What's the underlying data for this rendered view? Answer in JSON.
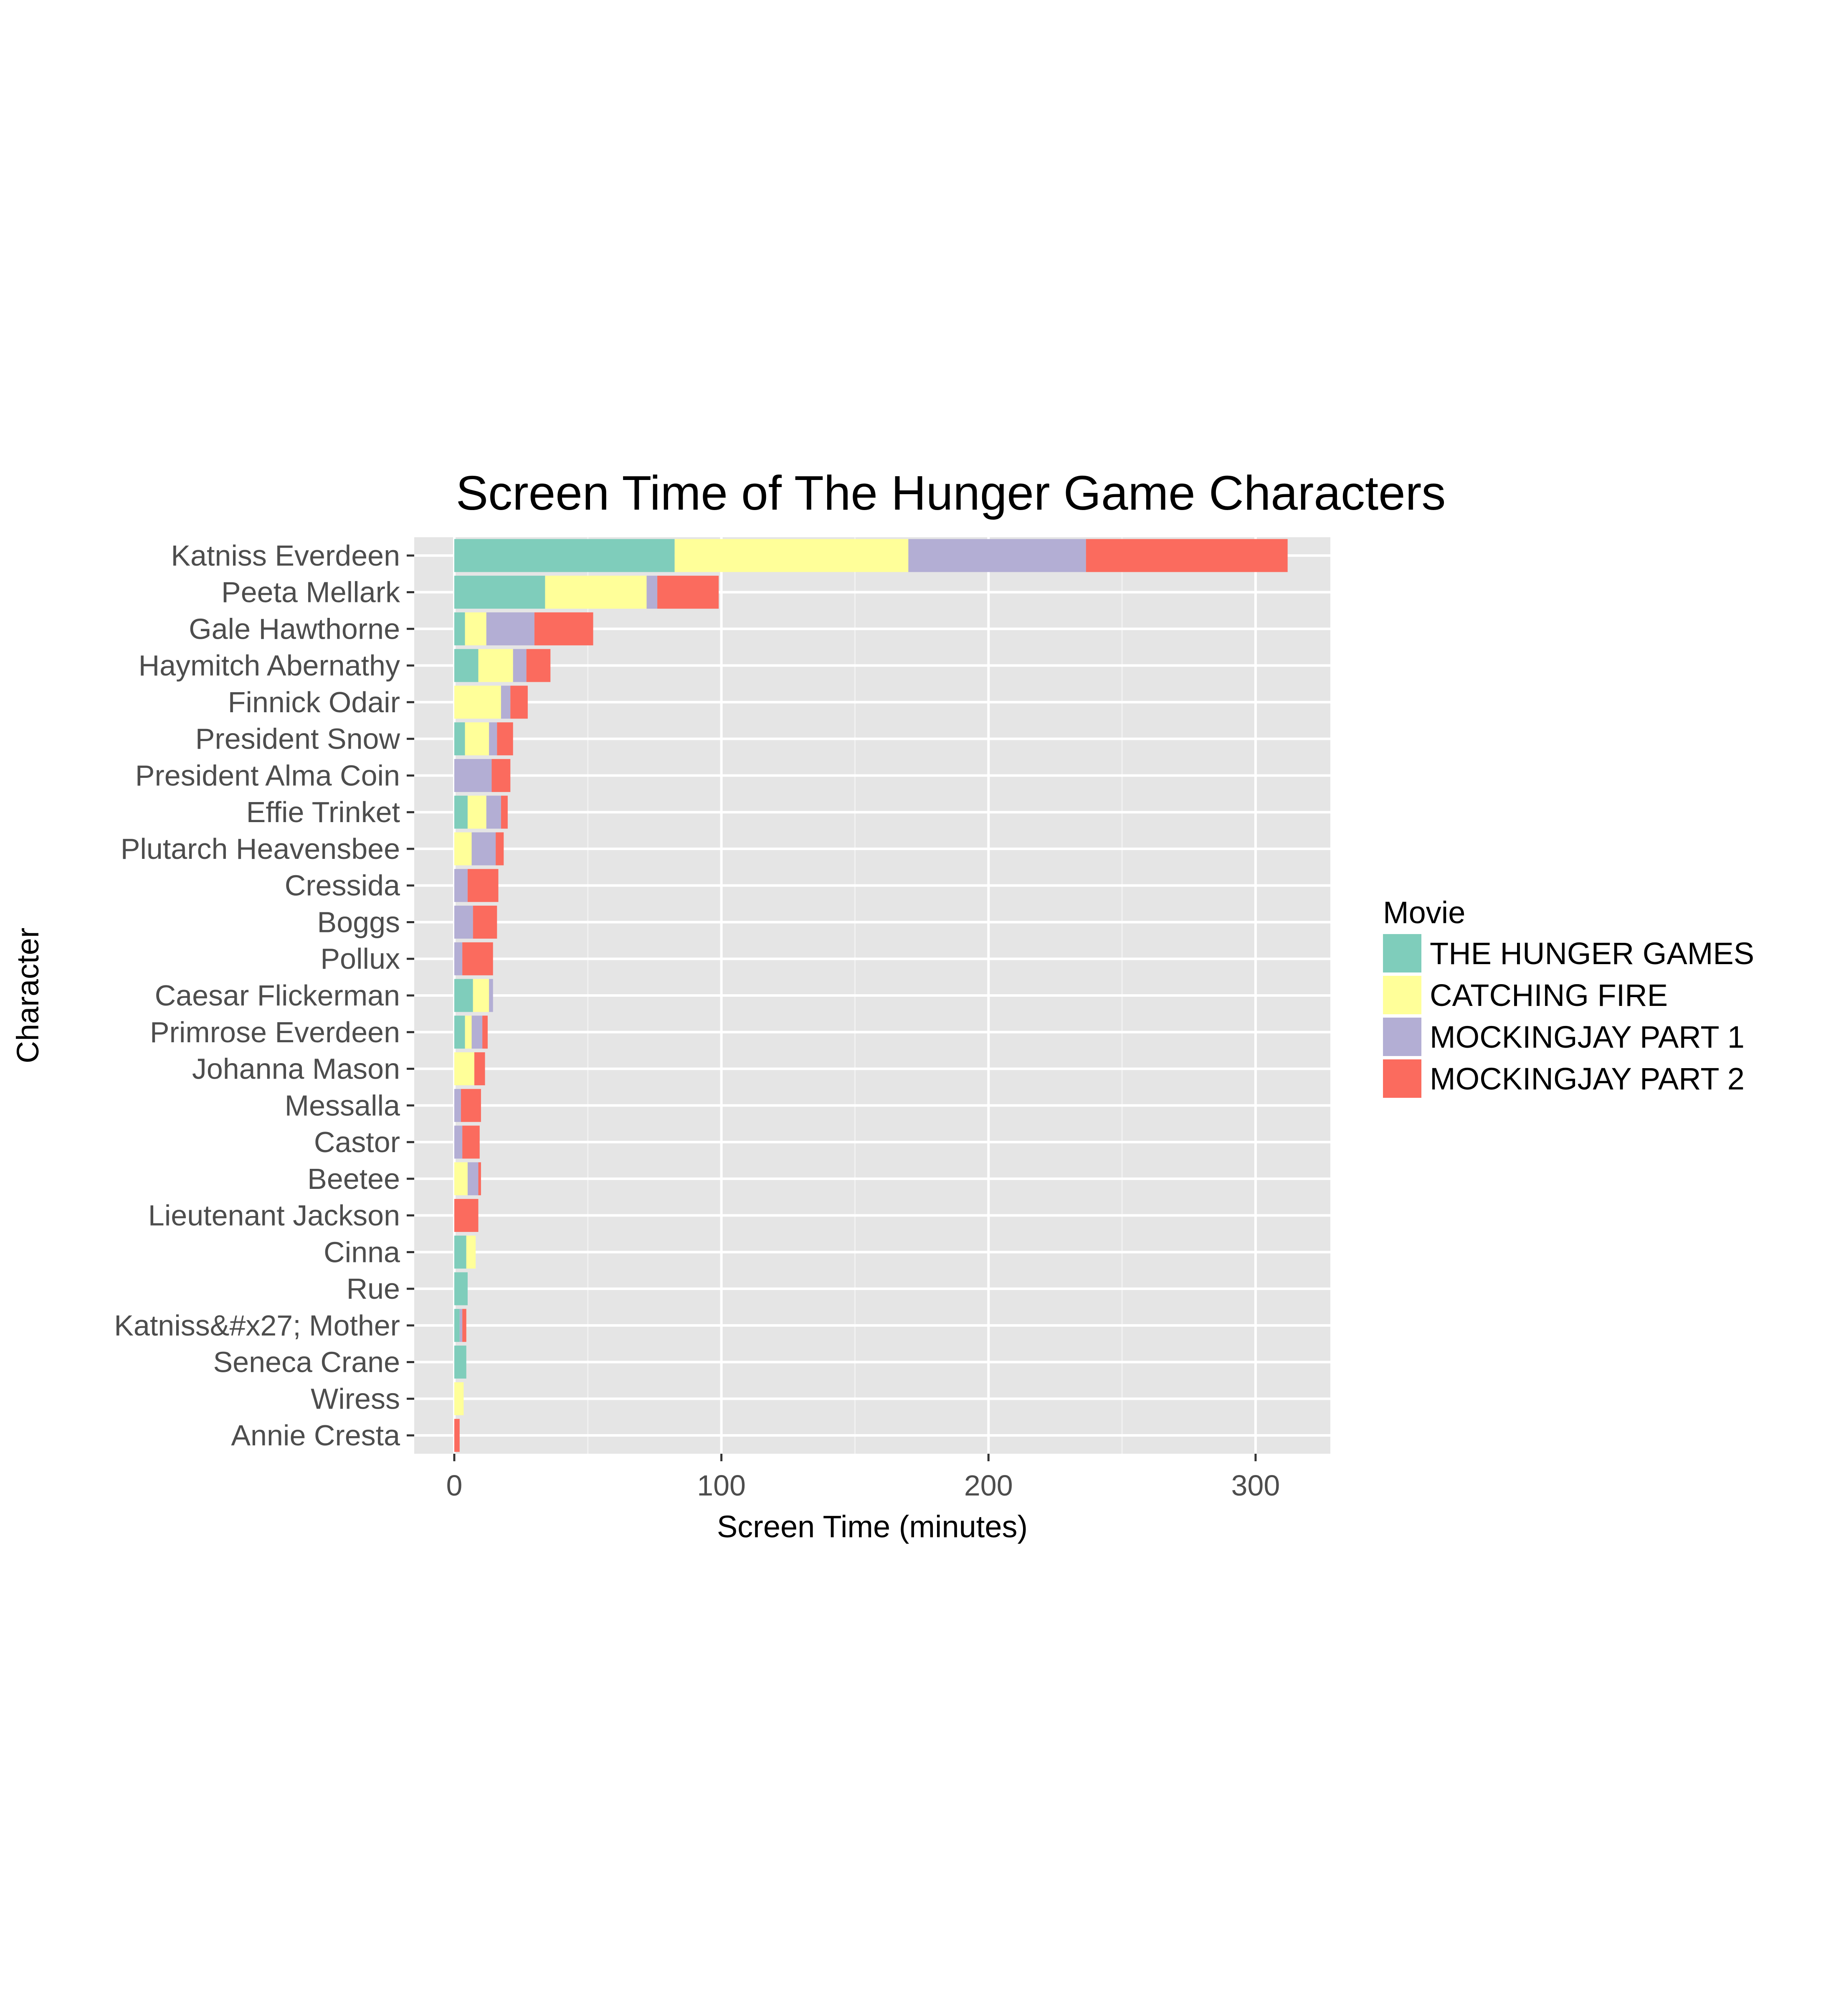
{
  "chart_data": {
    "type": "bar",
    "orientation": "horizontal",
    "stacked": true,
    "title": "Screen Time of The Hunger Game Characters",
    "xlabel": "Screen Time (minutes)",
    "ylabel": "Character",
    "xlim": [
      -15,
      328
    ],
    "xticks": [
      0,
      100,
      200,
      300
    ],
    "grid": true,
    "legend_title": "Movie",
    "legend_position": "right",
    "categories": [
      "Katniss Everdeen",
      "Peeta Mellark",
      "Gale Hawthorne",
      "Haymitch Abernathy",
      "Finnick Odair",
      "President Snow",
      "President Alma Coin",
      "Effie Trinket",
      "Plutarch Heavensbee",
      "Cressida",
      "Boggs",
      "Pollux",
      "Caesar Flickerman",
      "Primrose Everdeen",
      "Johanna Mason",
      "Messalla",
      "Castor",
      "Beetee",
      "Lieutenant Jackson",
      "Cinna",
      "Rue",
      "Katniss&#x27; Mother",
      "Seneca Crane",
      "Wiress",
      "Annie Cresta"
    ],
    "series": [
      {
        "name": "THE HUNGER GAMES",
        "color": "#7fcdbb",
        "values": [
          82.5,
          34,
          4,
          9,
          0,
          4,
          0,
          5,
          0,
          0,
          0,
          0,
          7,
          4,
          0,
          0,
          0,
          0,
          0,
          4.5,
          5,
          2,
          4.5,
          0,
          0
        ]
      },
      {
        "name": "CATCHING FIRE",
        "color": "#ffff99",
        "values": [
          87.5,
          38,
          8,
          13,
          17.5,
          9,
          0,
          7,
          6.5,
          0,
          0,
          0,
          6,
          2.5,
          7.5,
          0,
          0,
          5,
          0,
          3.5,
          0,
          0,
          0,
          3.5,
          0
        ]
      },
      {
        "name": "MOCKINGJAY PART 1",
        "color": "#b3aed4",
        "values": [
          66.5,
          4,
          18,
          5,
          3.5,
          3,
          14,
          5.5,
          9,
          5,
          7,
          3,
          1.5,
          4,
          0,
          2.5,
          3,
          4,
          0,
          0,
          0,
          1,
          0,
          0,
          0
        ]
      },
      {
        "name": "MOCKINGJAY PART 2",
        "color": "#fb6b5e",
        "values": [
          75.5,
          23,
          22,
          9,
          6.5,
          6,
          7,
          2.5,
          3,
          11.5,
          9,
          11.5,
          0,
          2,
          4,
          7.5,
          6.5,
          1,
          9,
          0,
          0,
          1.5,
          0,
          0,
          2
        ]
      }
    ]
  }
}
